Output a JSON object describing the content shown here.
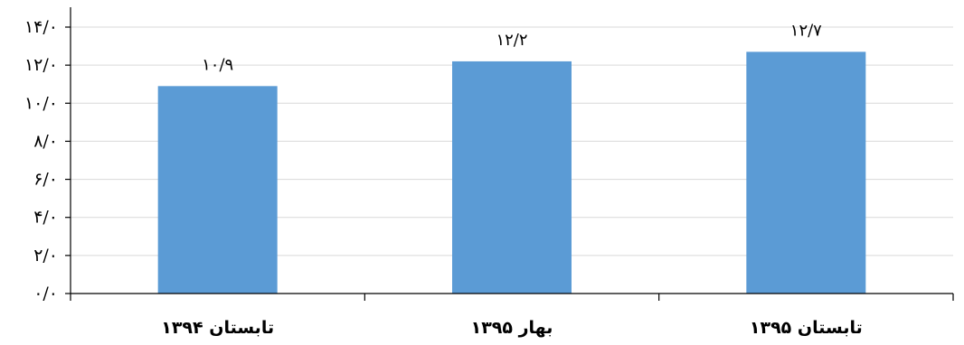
{
  "chart_data": {
    "type": "bar",
    "title": "",
    "xlabel": "",
    "ylabel": "",
    "categories": [
      "تابستان ۱۳۹۴",
      "بهار ۱۳۹۵",
      "تابستان ۱۳۹۵"
    ],
    "values": [
      10.9,
      12.2,
      12.7
    ],
    "value_labels": [
      "۱۰/۹",
      "۱۲/۲",
      "۱۲/۷"
    ],
    "ylim": [
      0,
      14
    ],
    "y_ticks": [
      0,
      2,
      4,
      6,
      8,
      10,
      12,
      14
    ],
    "y_tick_labels": [
      "۰/۰",
      "۲/۰",
      "۴/۰",
      "۶/۰",
      "۸/۰",
      "۱۰/۰",
      "۱۲/۰",
      "۱۴/۰"
    ],
    "grid": true,
    "legend": "none",
    "colors": {
      "bar": "#5b9bd5",
      "gridline": "#d9d9d9",
      "axis": "#000000"
    }
  }
}
